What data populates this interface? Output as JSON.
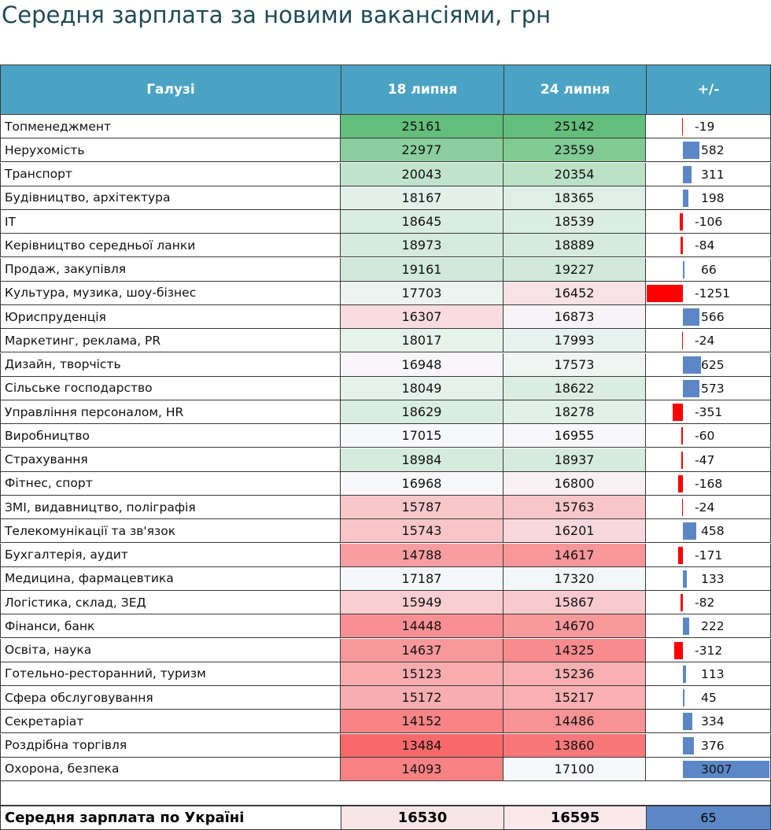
{
  "title": "Середня зарплата за новими вакансіями, грн",
  "headers": {
    "industry": "Галузі",
    "d1": "18 липня",
    "d2": "24 липня",
    "diff": "+/-"
  },
  "colors": {
    "header": "#4ba3c3",
    "bar_pos": "#5b87c7",
    "bar_neg": "#ff0000",
    "high": "#63be7b",
    "mid": "#f8f9fc",
    "low": "#f8696b"
  },
  "chart_data": {
    "type": "table",
    "columns": [
      "Галузі",
      "18 липня",
      "24 липня",
      "+/-"
    ],
    "rows": [
      {
        "name": "Топменеджмент",
        "v1": 25161,
        "v2": 25142,
        "diff": -19
      },
      {
        "name": "Нерухомість",
        "v1": 22977,
        "v2": 23559,
        "diff": 582
      },
      {
        "name": "Транспорт",
        "v1": 20043,
        "v2": 20354,
        "diff": 311
      },
      {
        "name": "Будівництво, архітектура",
        "v1": 18167,
        "v2": 18365,
        "diff": 198
      },
      {
        "name": "IT",
        "v1": 18645,
        "v2": 18539,
        "diff": -106
      },
      {
        "name": "Керівництво середньої ланки",
        "v1": 18973,
        "v2": 18889,
        "diff": -84
      },
      {
        "name": "Продаж, закупівля",
        "v1": 19161,
        "v2": 19227,
        "diff": 66
      },
      {
        "name": "Культура, музика, шоу-бізнес",
        "v1": 17703,
        "v2": 16452,
        "diff": -1251
      },
      {
        "name": "Юриспруденція",
        "v1": 16307,
        "v2": 16873,
        "diff": 566
      },
      {
        "name": "Маркетинг, реклама, PR",
        "v1": 18017,
        "v2": 17993,
        "diff": -24
      },
      {
        "name": "Дизайн, творчість",
        "v1": 16948,
        "v2": 17573,
        "diff": 625
      },
      {
        "name": "Сільське господарство",
        "v1": 18049,
        "v2": 18622,
        "diff": 573
      },
      {
        "name": "Управління персоналом, HR",
        "v1": 18629,
        "v2": 18278,
        "diff": -351
      },
      {
        "name": "Виробництво",
        "v1": 17015,
        "v2": 16955,
        "diff": -60
      },
      {
        "name": "Страхування",
        "v1": 18984,
        "v2": 18937,
        "diff": -47
      },
      {
        "name": "Фітнес, спорт",
        "v1": 16968,
        "v2": 16800,
        "diff": -168
      },
      {
        "name": "ЗМІ, видавництво, поліграфія",
        "v1": 15787,
        "v2": 15763,
        "diff": -24
      },
      {
        "name": "Телекомунікації та зв'язок",
        "v1": 15743,
        "v2": 16201,
        "diff": 458
      },
      {
        "name": "Бухгалтерія, аудит",
        "v1": 14788,
        "v2": 14617,
        "diff": -171
      },
      {
        "name": "Медицина, фармацевтика",
        "v1": 17187,
        "v2": 17320,
        "diff": 133
      },
      {
        "name": "Логістика, склад, ЗЕД",
        "v1": 15949,
        "v2": 15867,
        "diff": -82
      },
      {
        "name": "Фінанси, банк",
        "v1": 14448,
        "v2": 14670,
        "diff": 222
      },
      {
        "name": "Освіта, наука",
        "v1": 14637,
        "v2": 14325,
        "diff": -312
      },
      {
        "name": "Готельно-ресторанний, туризм",
        "v1": 15123,
        "v2": 15236,
        "diff": 113
      },
      {
        "name": "Сфера обслуговування",
        "v1": 15172,
        "v2": 15217,
        "diff": 45
      },
      {
        "name": "Секретаріат",
        "v1": 14152,
        "v2": 14486,
        "diff": 334
      },
      {
        "name": "Роздрібна торгівля",
        "v1": 13484,
        "v2": 13860,
        "diff": 376
      },
      {
        "name": "Охорона, безпека",
        "v1": 14093,
        "v2": 17100,
        "diff": 3007
      }
    ],
    "average": {
      "name": "Середня зарплата по Україні",
      "v1": 16530,
      "v2": 16595,
      "diff": 65
    }
  }
}
